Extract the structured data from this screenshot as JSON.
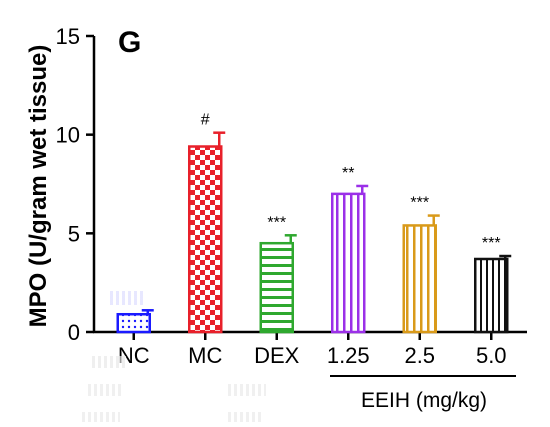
{
  "chart_data": {
    "type": "bar",
    "panel_label": "G",
    "ylabel": "MPO (U/gram wet tissue)",
    "ylim": [
      0,
      15
    ],
    "yticks": [
      0,
      5,
      10,
      15
    ],
    "categories": [
      "NC",
      "MC",
      "DEX",
      "1.25",
      "2.5",
      "5.0"
    ],
    "values": [
      0.9,
      9.4,
      4.5,
      7.0,
      5.4,
      3.7
    ],
    "errors": [
      0.2,
      0.7,
      0.4,
      0.4,
      0.5,
      0.15
    ],
    "significance": [
      "",
      "#",
      "***",
      "**",
      "***",
      "***"
    ],
    "colors": [
      "#1a1aff",
      "#e8202a",
      "#2fa82f",
      "#9b30e8",
      "#d99a1a",
      "#111111"
    ],
    "patterns": [
      "dots",
      "checker",
      "hlines",
      "vlines",
      "vlines",
      "vlines"
    ],
    "group_label": "EEIH (mg/kg)",
    "group_start": 3,
    "group_end": 5,
    "grid": false,
    "legend": "none"
  }
}
